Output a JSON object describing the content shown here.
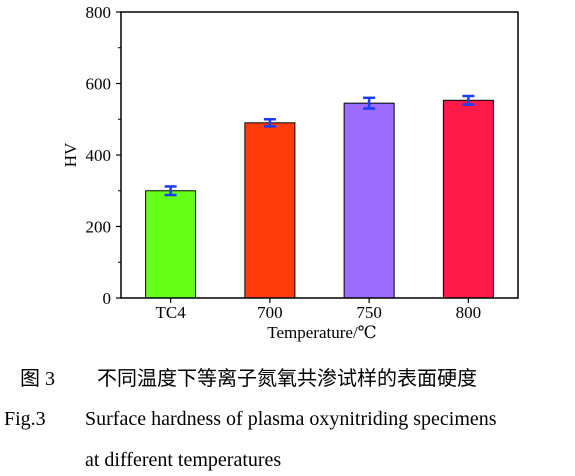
{
  "chart_data": {
    "type": "bar",
    "categories": [
      "TC4",
      "700",
      "750",
      "800"
    ],
    "values": [
      300,
      490,
      545,
      553
    ],
    "errors": [
      12,
      10,
      15,
      12
    ],
    "colors": [
      "#66ff1a",
      "#ff3d0a",
      "#9c6bff",
      "#ff1a4a"
    ],
    "error_bar_color": "#1a3cff",
    "xlabel": "Temperature/℃",
    "ylabel": "HV",
    "ylim": [
      0,
      800
    ],
    "yticks": [
      0,
      200,
      400,
      600,
      800
    ],
    "grid": false,
    "legend": "none"
  },
  "caption": {
    "cn_label": "图 3",
    "cn_text": "不同温度下等离子氮氧共渗试样的表面硬度",
    "en_label": "Fig.3",
    "en_text_line1": "Surface hardness of plasma oxynitriding specimens",
    "en_text_line2": "at different temperatures"
  }
}
